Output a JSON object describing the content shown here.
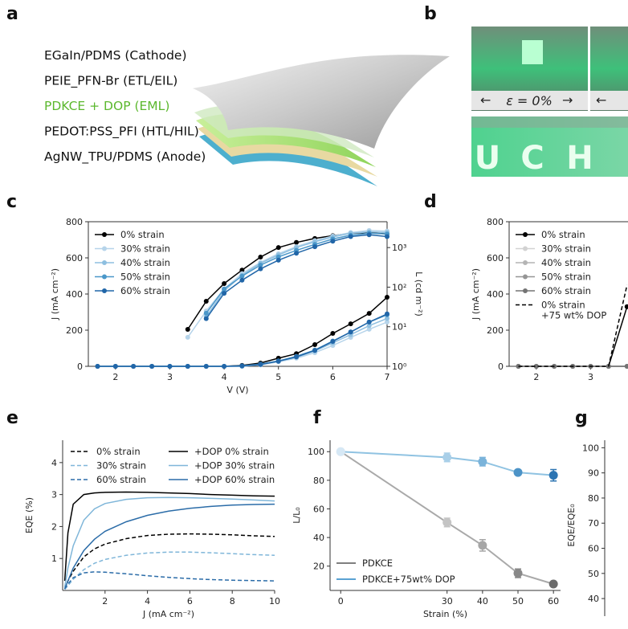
{
  "panel_letters": [
    "a",
    "b",
    "c",
    "d",
    "e",
    "f",
    "g"
  ],
  "layers": [
    {
      "label": "EGaIn/PDMS (Cathode)",
      "color": "#111111"
    },
    {
      "label": "PEIE_PFN-Br (ETL/EIL)",
      "color": "#111111"
    },
    {
      "label": "PDKCE + DOP (EML)",
      "color": "#5cb82e"
    },
    {
      "label": "PEDOT:PSS_PFI (HTL/HIL)",
      "color": "#111111"
    },
    {
      "label": "AgNW_TPU/PDMS (Anode)",
      "color": "#111111"
    }
  ],
  "photo": {
    "strain_label": "ε = 0%",
    "letters": [
      "U",
      "C",
      "H"
    ]
  },
  "chart_data": [
    {
      "type": "line",
      "xlabel": "V (V)",
      "ylabel": "J (mA cm⁻²)",
      "y2label": "L (cd m⁻²)",
      "x": [
        1.67,
        2,
        2.33,
        2.67,
        3,
        3.33,
        3.67,
        4,
        4.33,
        4.67,
        5,
        5.33,
        5.67,
        6,
        6.33,
        6.67,
        7
      ],
      "xlim": [
        1.5,
        7
      ],
      "xticks": [
        2,
        3,
        4,
        5,
        6,
        7
      ],
      "ylim": [
        0,
        800
      ],
      "yticks": [
        0,
        200,
        400,
        600,
        800
      ],
      "y2lim": [
        1,
        4500
      ],
      "y2scale": "log",
      "y2ticks": [
        {
          "value": 1,
          "label": "10⁰"
        },
        {
          "value": 10,
          "label": "10¹"
        },
        {
          "value": 100,
          "label": "10²"
        },
        {
          "value": 1000,
          "label": "10³"
        }
      ],
      "markers": true,
      "legend": "upper left",
      "box": true,
      "series": [
        {
          "name": "0% strain",
          "color": "#000000",
          "values": [
            0,
            0,
            0,
            0,
            0,
            0,
            0,
            0,
            5,
            18,
            45,
            70,
            120,
            182,
            235,
            293,
            382
          ]
        },
        {
          "name": "30% strain",
          "color": "#b6d4ea",
          "values": [
            0,
            0,
            0,
            0,
            0,
            0,
            0,
            0,
            0,
            8,
            25,
            45,
            75,
            115,
            160,
            205,
            245
          ]
        },
        {
          "name": "40% strain",
          "color": "#8ebfe0",
          "values": [
            0,
            0,
            0,
            0,
            0,
            0,
            0,
            0,
            0,
            10,
            28,
            50,
            85,
            130,
            175,
            225,
            265
          ]
        },
        {
          "name": "50% strain",
          "color": "#4a97c9",
          "values": [
            0,
            0,
            0,
            0,
            0,
            0,
            0,
            0,
            3,
            12,
            30,
            55,
            90,
            140,
            190,
            245,
            285
          ]
        },
        {
          "name": "60% strain",
          "color": "#2166a8",
          "values": [
            0,
            0,
            0,
            0,
            0,
            0,
            0,
            0,
            2,
            10,
            28,
            52,
            88,
            138,
            190,
            245,
            290
          ]
        },
        {
          "axis": "y2",
          "color": "#000000",
          "values": [
            null,
            null,
            null,
            null,
            null,
            8.6,
            44,
            123,
            270,
            575,
            1000,
            1350,
            1700,
            2000,
            2300,
            2400,
            2200
          ]
        },
        {
          "axis": "y2",
          "color": "#b6d4ea",
          "values": [
            null,
            null,
            null,
            null,
            null,
            5.4,
            25,
            90,
            220,
            420,
            700,
            1050,
            1500,
            1950,
            2400,
            2700,
            2600
          ]
        },
        {
          "axis": "y2",
          "color": "#8ebfe0",
          "values": [
            null,
            null,
            null,
            null,
            null,
            null,
            18,
            80,
            200,
            400,
            650,
            1000,
            1400,
            1850,
            2300,
            2500,
            2400
          ]
        },
        {
          "axis": "y2",
          "color": "#4a97c9",
          "values": [
            null,
            null,
            null,
            null,
            null,
            null,
            22,
            90,
            190,
            360,
            580,
            850,
            1200,
            1650,
            2050,
            2300,
            2200
          ]
        },
        {
          "axis": "y2",
          "color": "#2166a8",
          "values": [
            null,
            null,
            null,
            null,
            null,
            null,
            16,
            70,
            150,
            290,
            480,
            720,
            1050,
            1450,
            1900,
            2100,
            1900
          ]
        }
      ]
    },
    {
      "type": "line",
      "ylabel": "J (mA cm⁻²)",
      "x": [
        1.67,
        2,
        2.33,
        2.67,
        3,
        3.33,
        3.67
      ],
      "xlim": [
        1.5,
        7
      ],
      "xticks": [
        2,
        3
      ],
      "ylim": [
        0,
        800
      ],
      "yticks": [
        0,
        200,
        400,
        600,
        800
      ],
      "markers": true,
      "legend": "upper left",
      "box": true,
      "series": [
        {
          "name": "0% strain",
          "color": "#000000",
          "values": [
            0,
            0,
            0,
            0,
            0,
            0,
            330
          ]
        },
        {
          "name": "30% strain",
          "color": "#d2d2d2",
          "values": [
            0,
            0,
            0,
            0,
            0,
            0,
            0
          ]
        },
        {
          "name": "40% strain",
          "color": "#b4b4b4",
          "values": [
            0,
            0,
            0,
            0,
            0,
            0,
            0
          ]
        },
        {
          "name": "50% strain",
          "color": "#959595",
          "values": [
            0,
            0,
            0,
            0,
            0,
            0,
            0
          ]
        },
        {
          "name": "60% strain",
          "color": "#737373",
          "values": [
            0,
            0,
            0,
            0,
            0,
            0,
            0
          ]
        },
        {
          "name": "0% strain\n+75 wt% DOP",
          "color": "#000000",
          "dash": true,
          "markers": false,
          "values": [
            0,
            0,
            0,
            0,
            0,
            0,
            450
          ]
        }
      ]
    },
    {
      "type": "line",
      "xlabel": "J (mA cm⁻²)",
      "ylabel": "EQE (%)",
      "x": [
        0.1,
        0.25,
        0.5,
        1,
        1.5,
        2,
        3,
        4,
        5,
        6,
        7,
        8,
        9,
        10
      ],
      "xlim": [
        0,
        10
      ],
      "xticks": [
        2,
        4,
        6,
        8,
        10
      ],
      "ylim": [
        0,
        4.7
      ],
      "yticks": [
        1,
        2,
        3,
        4
      ],
      "markers": false,
      "legend": "upper center",
      "legend_columns": 2,
      "series": [
        {
          "name": "0% strain",
          "color": "#000000",
          "dash": true,
          "values": [
            0.05,
            0.3,
            0.6,
            1.05,
            1.3,
            1.45,
            1.62,
            1.72,
            1.76,
            1.77,
            1.76,
            1.74,
            1.71,
            1.69
          ]
        },
        {
          "name": "30% strain",
          "color": "#7fb6d9",
          "dash": true,
          "values": [
            0.03,
            0.15,
            0.35,
            0.65,
            0.85,
            0.97,
            1.1,
            1.17,
            1.2,
            1.2,
            1.18,
            1.15,
            1.12,
            1.1
          ]
        },
        {
          "name": "60% strain",
          "color": "#2b6ca8",
          "dash": true,
          "values": [
            0.05,
            0.2,
            0.4,
            0.55,
            0.58,
            0.57,
            0.52,
            0.46,
            0.41,
            0.37,
            0.34,
            0.32,
            0.31,
            0.3
          ]
        },
        {
          "name": "+DOP 0% strain",
          "color": "#000000",
          "values": [
            0.3,
            1.8,
            2.7,
            3.0,
            3.05,
            3.07,
            3.08,
            3.07,
            3.05,
            3.03,
            3.0,
            2.98,
            2.96,
            2.95
          ]
        },
        {
          "name": "+DOP 30% strain",
          "color": "#7fb6d9",
          "values": [
            0.1,
            0.7,
            1.4,
            2.2,
            2.55,
            2.72,
            2.85,
            2.9,
            2.91,
            2.9,
            2.88,
            2.86,
            2.83,
            2.8
          ]
        },
        {
          "name": "+DOP 60% strain",
          "color": "#2b6ca8",
          "values": [
            0.05,
            0.3,
            0.7,
            1.25,
            1.6,
            1.85,
            2.15,
            2.35,
            2.48,
            2.57,
            2.63,
            2.67,
            2.69,
            2.7
          ]
        }
      ]
    },
    {
      "type": "errorline",
      "xlabel": "Strain (%)",
      "ylabel": "L/L₀",
      "x": [
        0,
        30,
        40,
        50,
        60
      ],
      "xlim": [
        -3,
        62
      ],
      "xticks": [
        0,
        30,
        40,
        50,
        60
      ],
      "ylim": [
        3,
        108
      ],
      "yticks": [
        20,
        40,
        60,
        80,
        100
      ],
      "legend": "lower left",
      "series": [
        {
          "name": "PDKCE",
          "color": "#a9a9a9",
          "legend_color": "#7f7f7f",
          "values": [
            100,
            50.5,
            34.5,
            15,
            7.5
          ],
          "errors": [
            1,
            3,
            4,
            3,
            1
          ],
          "point_colors": [
            "#e6e6e6",
            "#c4c4c4",
            "#a6a6a6",
            "#888888",
            "#6a6a6a"
          ]
        },
        {
          "name": "PDKCE+75wt% DOP",
          "color": "#90c3e2",
          "legend_color": "#5aa2d3",
          "values": [
            100,
            96,
            93,
            85.5,
            83.5
          ],
          "errors": [
            1,
            3,
            3,
            1,
            4
          ],
          "point_colors": [
            "#d6e8f5",
            "#a9cfe8",
            "#7ab3da",
            "#4c93c7",
            "#2c74b2"
          ]
        }
      ]
    },
    {
      "type": "errorline",
      "ylabel": "EQE/EQE₀",
      "ylim": [
        33,
        103
      ],
      "yticks": [
        40,
        50,
        60,
        70,
        80,
        90,
        100
      ],
      "series": []
    }
  ]
}
